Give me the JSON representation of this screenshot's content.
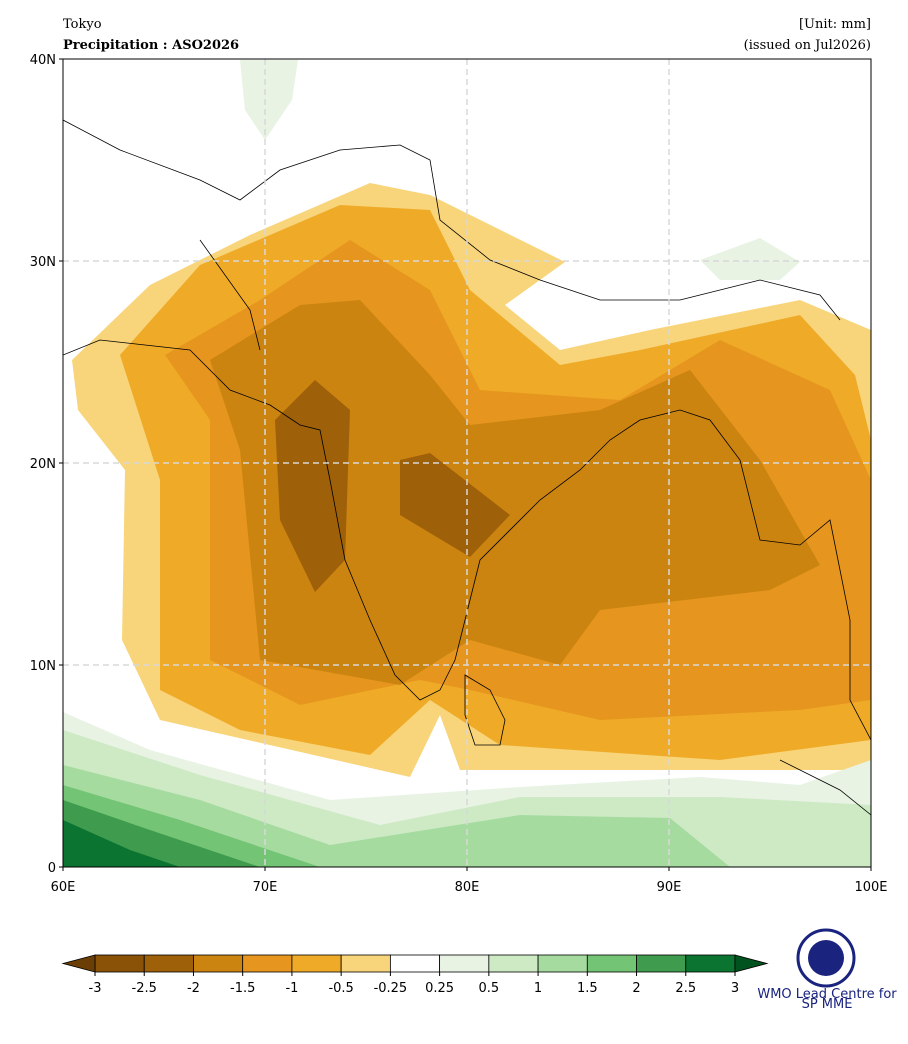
{
  "header": {
    "source": "Tokyo",
    "title": "Precipitation : ASO2026",
    "unit": "[Unit: mm]",
    "issued": "(issued on Jul2026)"
  },
  "map": {
    "xlim": [
      60,
      100
    ],
    "ylim": [
      0,
      40
    ],
    "xticks": [
      {
        "value": 60,
        "label": "60E"
      },
      {
        "value": 70,
        "label": "70E"
      },
      {
        "value": 80,
        "label": "80E"
      },
      {
        "value": 90,
        "label": "90E"
      },
      {
        "value": 100,
        "label": "100E"
      }
    ],
    "yticks": [
      0,
      {
        "value": 10,
        "label": "10N"
      },
      {
        "value": 20,
        "label": "20N"
      },
      {
        "value": 30,
        "label": "30N"
      },
      {
        "value": 40,
        "label": "40N"
      }
    ],
    "grid": true,
    "colorbar": {
      "ticks": [
        -3,
        -2.5,
        -2,
        -1.5,
        -1,
        -0.5,
        -0.25,
        0.25,
        0.5,
        1,
        1.5,
        2,
        2.5,
        3
      ],
      "colors": [
        "#8a5207",
        "#9e6008",
        "#cc8410",
        "#e6961e",
        "#efab28",
        "#f8d57a",
        "#ffffff",
        "#e8f3e4",
        "#cdeac5",
        "#a6dba0",
        "#74c476",
        "#3f9b4e",
        "#0a7430"
      ],
      "extend_colors": [
        "#6b3e05",
        "#00521f"
      ]
    }
  },
  "logo": {
    "line1": "WMO Lead Centre for",
    "line2": "SP MME"
  }
}
